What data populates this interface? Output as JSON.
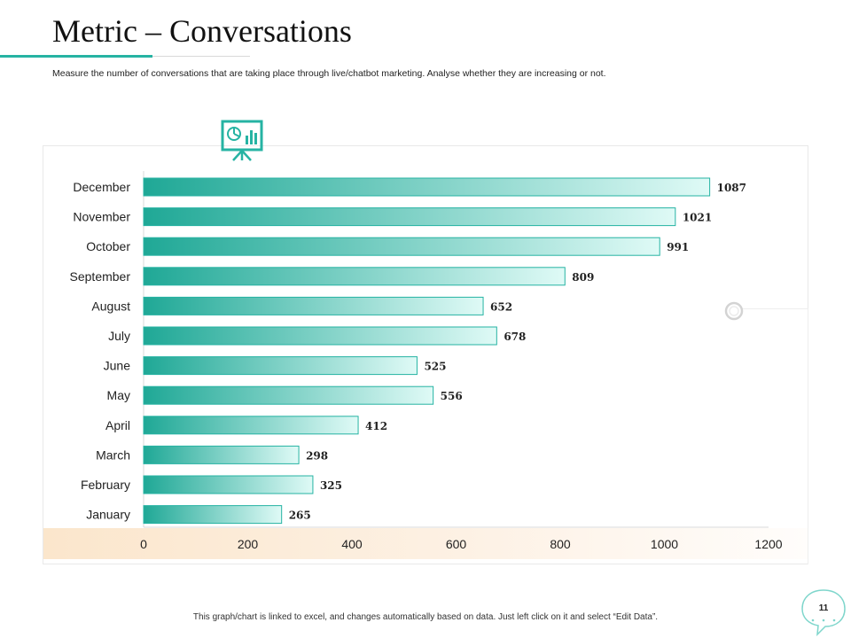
{
  "header": {
    "title": "Metric – Conversations",
    "subtitle": "Measure the number of conversations that are taking place through live/chatbot marketing. Analyse whether they are increasing or not."
  },
  "chart_data": {
    "type": "bar",
    "orientation": "horizontal",
    "categories": [
      "December",
      "November",
      "October",
      "September",
      "August",
      "July",
      "June",
      "May",
      "April",
      "March",
      "February",
      "January"
    ],
    "values": [
      1087,
      1021,
      991,
      809,
      652,
      678,
      525,
      556,
      412,
      298,
      325,
      265
    ],
    "xlim": [
      0,
      1200
    ],
    "xticks": [
      "0",
      "200",
      "400",
      "600",
      "800",
      "1000",
      "1200"
    ],
    "title": "",
    "xlabel": "",
    "ylabel": "",
    "grid": false,
    "bar_color_start": "#1fa896",
    "bar_color_end": "#dffaf6",
    "bar_border": "#26b3a3"
  },
  "icons": {
    "presentation": "presentation-board-icon",
    "ring": "ring-icon",
    "speech_bubble": "speech-bubble-icon"
  },
  "colors": {
    "accent": "#26b3a3",
    "band": "#fbe6cc"
  },
  "footer": {
    "note": "This graph/chart is linked to excel, and changes automatically based on data. Just left click on it and select “Edit Data”.",
    "page_number": "11"
  }
}
